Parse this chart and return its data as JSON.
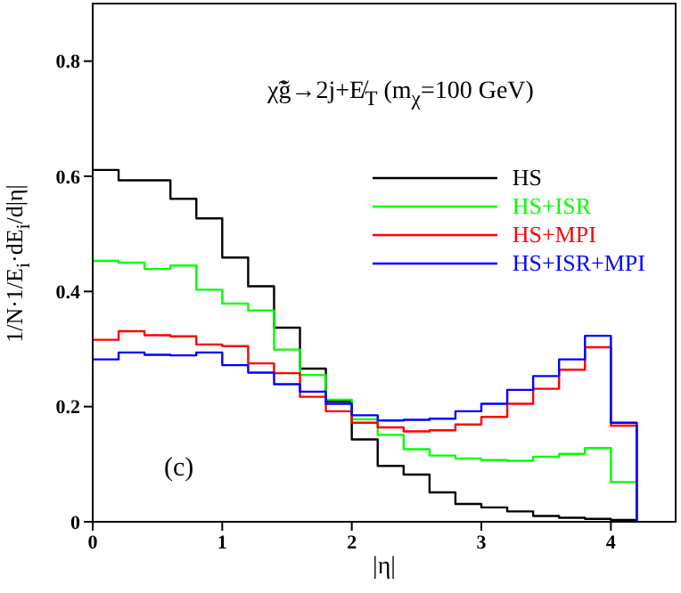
{
  "chart_data": {
    "type": "histogram",
    "title": "χ̃g̃→2j+E̸$_{T}$   (m$_{χ}$=100 GeV)",
    "xlabel": "|η|",
    "ylabel": "1/N·1/E$_{i}$·dE$_{i}$/d|η|",
    "annotations": [
      "(c)"
    ],
    "bins": [
      0,
      0.2,
      0.4,
      0.6,
      0.8,
      1.0,
      1.2,
      1.4,
      1.6,
      1.8,
      2.0,
      2.2,
      2.4,
      2.6,
      2.8,
      3.0,
      3.2,
      3.4,
      3.6,
      3.8,
      4.0,
      4.2
    ],
    "series": [
      {
        "name": "HS",
        "color": "#000000",
        "values": [
          0.611,
          0.593,
          0.593,
          0.561,
          0.527,
          0.459,
          0.409,
          0.337,
          0.266,
          0.209,
          0.143,
          0.097,
          0.082,
          0.051,
          0.031,
          0.025,
          0.018,
          0.01,
          0.007,
          0.005,
          0.003
        ]
      },
      {
        "name": "HS+ISR",
        "color": "#00ff00",
        "values": [
          0.453,
          0.45,
          0.439,
          0.445,
          0.403,
          0.379,
          0.367,
          0.299,
          0.255,
          0.212,
          0.178,
          0.151,
          0.126,
          0.115,
          0.11,
          0.107,
          0.106,
          0.113,
          0.118,
          0.128,
          0.069
        ]
      },
      {
        "name": "HS+MPI",
        "color": "#ff0000",
        "values": [
          0.316,
          0.331,
          0.324,
          0.322,
          0.308,
          0.305,
          0.275,
          0.258,
          0.217,
          0.192,
          0.172,
          0.164,
          0.157,
          0.159,
          0.169,
          0.182,
          0.205,
          0.231,
          0.264,
          0.303,
          0.167
        ]
      },
      {
        "name": "HS+ISR+MPI",
        "color": "#0000ff",
        "values": [
          0.282,
          0.294,
          0.29,
          0.289,
          0.294,
          0.272,
          0.259,
          0.239,
          0.226,
          0.205,
          0.185,
          0.176,
          0.177,
          0.179,
          0.192,
          0.205,
          0.229,
          0.253,
          0.282,
          0.323,
          0.172
        ]
      }
    ],
    "xlim": [
      0,
      4.5
    ],
    "xticks": [
      0,
      1,
      2,
      3,
      4
    ],
    "ylim": [
      0,
      0.9
    ],
    "yticks": [
      0,
      0.2,
      0.4,
      0.6,
      0.8
    ],
    "legend": "top right",
    "grid": false
  }
}
